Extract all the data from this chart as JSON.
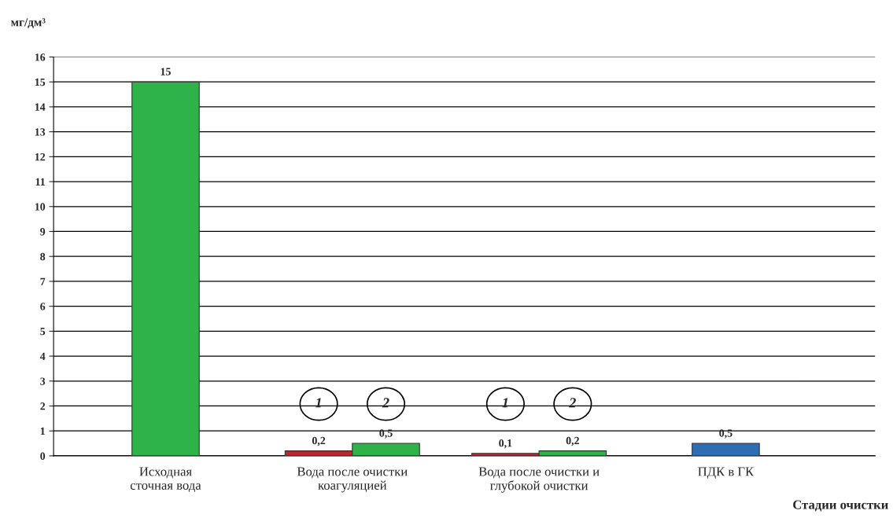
{
  "chart_data": {
    "type": "bar",
    "xlabel": "Стадии очистки",
    "ylabel": "мг/дм³",
    "categories": [
      "Исходная\nсточная вода",
      "Вода после очистки\nкоагуляцией",
      "Вода после очистки и\nглубокой очистки",
      "ПДК в ГК"
    ],
    "series": [
      {
        "color": "#c0262d",
        "values": [
          null,
          0.2,
          0.1,
          null
        ],
        "value_labels": [
          null,
          "0,2",
          "0,1",
          null
        ]
      },
      {
        "color": "#2db34a",
        "values": [
          15,
          0.5,
          0.2,
          null
        ],
        "value_labels": [
          "15",
          "0,5",
          "0,2",
          null
        ]
      },
      {
        "color": "#2e6db4",
        "values": [
          null,
          null,
          null,
          0.5
        ],
        "value_labels": [
          null,
          null,
          null,
          "0,5"
        ]
      }
    ],
    "annotations": [
      "1",
      "2",
      "1",
      "2"
    ],
    "ylim": [
      0,
      16
    ],
    "yticks": [
      0,
      1,
      2,
      3,
      4,
      5,
      6,
      7,
      8,
      9,
      10,
      11,
      12,
      13,
      14,
      15,
      16
    ],
    "grid": "y",
    "legend": false
  }
}
